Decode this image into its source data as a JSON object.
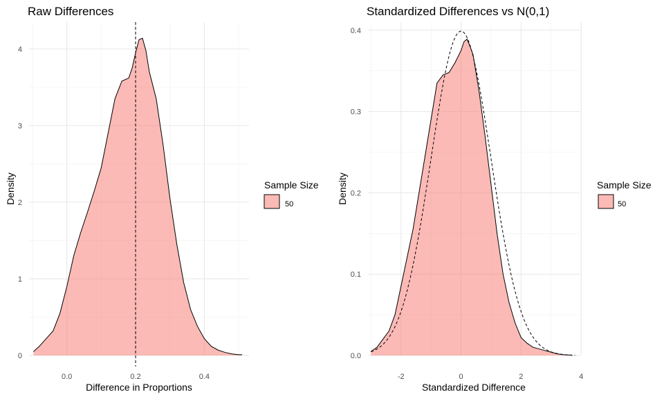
{
  "chart_data": [
    {
      "type": "area",
      "title": "Raw Differences",
      "xlabel": "Difference in Proportions",
      "ylabel": "Density",
      "xlim": [
        -0.11,
        0.53
      ],
      "ylim": [
        0,
        4.35
      ],
      "xticks": [
        0.0,
        0.2,
        0.4
      ],
      "xtick_labels": [
        "0.0",
        "0.2",
        "0.4"
      ],
      "yticks": [
        0,
        1,
        2,
        3,
        4
      ],
      "ytick_labels": [
        "0",
        "1",
        "2",
        "3",
        "4"
      ],
      "grid": true,
      "legend": {
        "title": "Sample Size",
        "position": "right",
        "entries": [
          {
            "label": "50",
            "color": "#F8766D"
          }
        ]
      },
      "fill_color": "#F8766D",
      "fill_opacity": 0.5,
      "vline": {
        "x": 0.2,
        "style": "dashed"
      },
      "series": [
        {
          "label": "50",
          "x": [
            -0.097,
            -0.08,
            -0.06,
            -0.04,
            -0.02,
            0.0,
            0.02,
            0.04,
            0.06,
            0.08,
            0.1,
            0.12,
            0.14,
            0.16,
            0.18,
            0.19,
            0.2,
            0.21,
            0.22,
            0.23,
            0.24,
            0.26,
            0.28,
            0.3,
            0.32,
            0.34,
            0.36,
            0.38,
            0.4,
            0.42,
            0.44,
            0.46,
            0.48,
            0.5,
            0.51
          ],
          "y": [
            0.05,
            0.12,
            0.22,
            0.32,
            0.55,
            0.9,
            1.3,
            1.6,
            1.87,
            2.15,
            2.45,
            2.9,
            3.35,
            3.58,
            3.62,
            3.75,
            3.95,
            4.12,
            4.14,
            3.98,
            3.7,
            3.35,
            2.75,
            2.05,
            1.45,
            0.95,
            0.6,
            0.38,
            0.22,
            0.12,
            0.07,
            0.04,
            0.02,
            0.01,
            0.01
          ]
        }
      ]
    },
    {
      "type": "area",
      "title": "Standardized Differences vs N(0,1)",
      "xlabel": "Standardized Difference",
      "ylabel": "Density",
      "xlim": [
        -3.1,
        3.95
      ],
      "ylim": [
        0,
        0.41
      ],
      "xticks": [
        -2,
        0,
        2,
        4
      ],
      "xtick_labels": [
        "-2",
        "0",
        "2",
        "4"
      ],
      "yticks": [
        0.0,
        0.1,
        0.2,
        0.3,
        0.4
      ],
      "ytick_labels": [
        "0.0",
        "0.1",
        "0.2",
        "0.3",
        "0.4"
      ],
      "grid": true,
      "legend": {
        "title": "Sample Size",
        "position": "right",
        "entries": [
          {
            "label": "50",
            "color": "#F8766D"
          }
        ]
      },
      "fill_color": "#F8766D",
      "fill_opacity": 0.5,
      "reference_curve": {
        "name": "N(0,1)",
        "style": "dashed",
        "x_range": [
          -3,
          3.8
        ]
      },
      "series": [
        {
          "label": "50",
          "x": [
            -3.0,
            -2.8,
            -2.6,
            -2.4,
            -2.2,
            -2.0,
            -1.8,
            -1.6,
            -1.4,
            -1.2,
            -1.0,
            -0.8,
            -0.6,
            -0.4,
            -0.2,
            0.0,
            0.1,
            0.2,
            0.3,
            0.4,
            0.6,
            0.8,
            1.0,
            1.2,
            1.4,
            1.6,
            1.8,
            2.0,
            2.2,
            2.4,
            2.6,
            2.8,
            3.0,
            3.2,
            3.4,
            3.6,
            3.7
          ],
          "y": [
            0.005,
            0.01,
            0.02,
            0.03,
            0.05,
            0.085,
            0.12,
            0.155,
            0.2,
            0.245,
            0.29,
            0.335,
            0.345,
            0.348,
            0.36,
            0.375,
            0.386,
            0.389,
            0.38,
            0.37,
            0.325,
            0.27,
            0.21,
            0.15,
            0.1,
            0.065,
            0.04,
            0.022,
            0.015,
            0.01,
            0.008,
            0.006,
            0.004,
            0.002,
            0.001,
            0.0005,
            0.0002
          ]
        }
      ]
    }
  ]
}
